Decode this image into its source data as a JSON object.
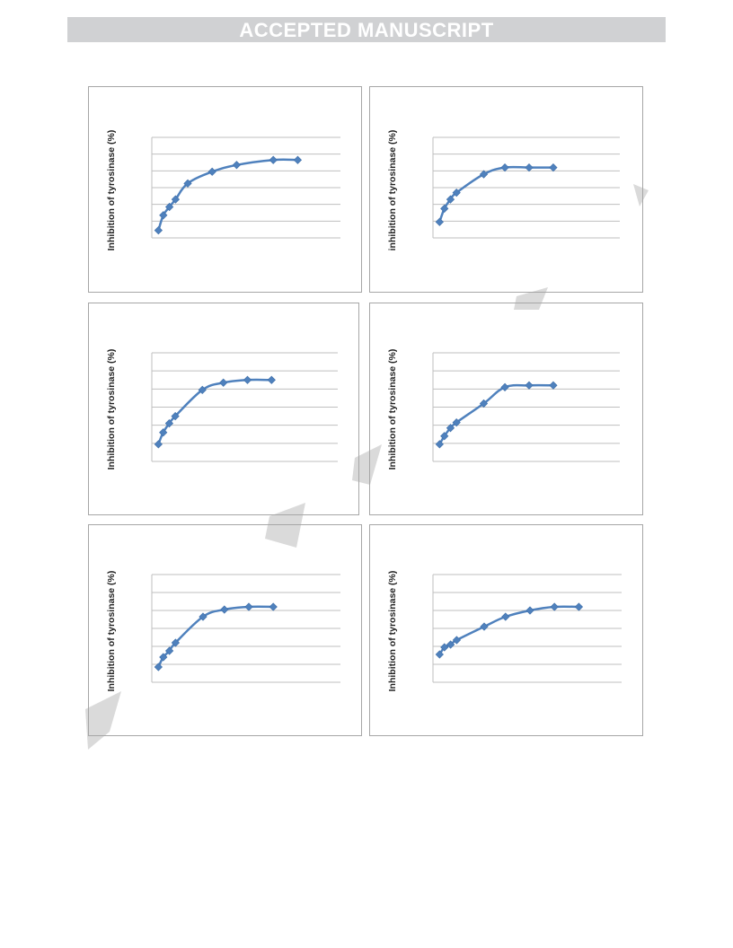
{
  "header": {
    "banner_text": "ACCEPTED MANUSCRIPT"
  },
  "style": {
    "line_color": "#4f81bd",
    "marker_color": "#4f81bd",
    "grid_color": "#bfbfbf",
    "border_color": "#a6a6a6",
    "banner_bg": "#d0d1d3",
    "watermark_color": "#d6d6d6"
  },
  "chart_data": [
    {
      "type": "line",
      "ylabel": "Inhibition of tyrosinase (%)",
      "grid": true,
      "x": [
        0.2,
        1,
        2,
        3,
        5,
        9,
        13,
        19,
        23
      ],
      "y": [
        9,
        27,
        37,
        46,
        65,
        79,
        87,
        93,
        93
      ]
    },
    {
      "type": "line",
      "ylabel": "inhibition of tyrosinase (%)",
      "grid": true,
      "x": [
        0.2,
        1,
        2,
        3,
        7.5,
        11,
        15,
        19
      ],
      "y": [
        19,
        35,
        46,
        54,
        76,
        84,
        84,
        84
      ]
    },
    {
      "type": "line",
      "ylabel": "Inhibition of tyrosinase (%)",
      "grid": true,
      "x": [
        0.2,
        1,
        2,
        3,
        7.5,
        11,
        15,
        19
      ],
      "y": [
        19,
        32,
        42,
        50,
        79,
        87,
        90,
        90
      ]
    },
    {
      "type": "line",
      "ylabel": "Inhibition of tyrosinase (%)",
      "grid": true,
      "x": [
        0.2,
        1,
        2,
        3,
        7.5,
        11,
        15,
        19
      ],
      "y": [
        19,
        28,
        37,
        43,
        64,
        82,
        84,
        84
      ]
    },
    {
      "type": "line",
      "ylabel": "Inhibition of tyrosinase (%)",
      "grid": true,
      "x": [
        0.2,
        1,
        2,
        3,
        7.5,
        11,
        15,
        19
      ],
      "y": [
        17,
        28,
        35,
        44,
        73,
        81,
        84,
        84
      ]
    },
    {
      "type": "line",
      "ylabel": "Inhibition of tyrosinase (%)",
      "grid": true,
      "x": [
        0.2,
        1,
        2,
        3,
        7.5,
        11,
        15,
        19,
        23
      ],
      "y": [
        31,
        39,
        42,
        47,
        62,
        73,
        80,
        84,
        84
      ]
    }
  ]
}
